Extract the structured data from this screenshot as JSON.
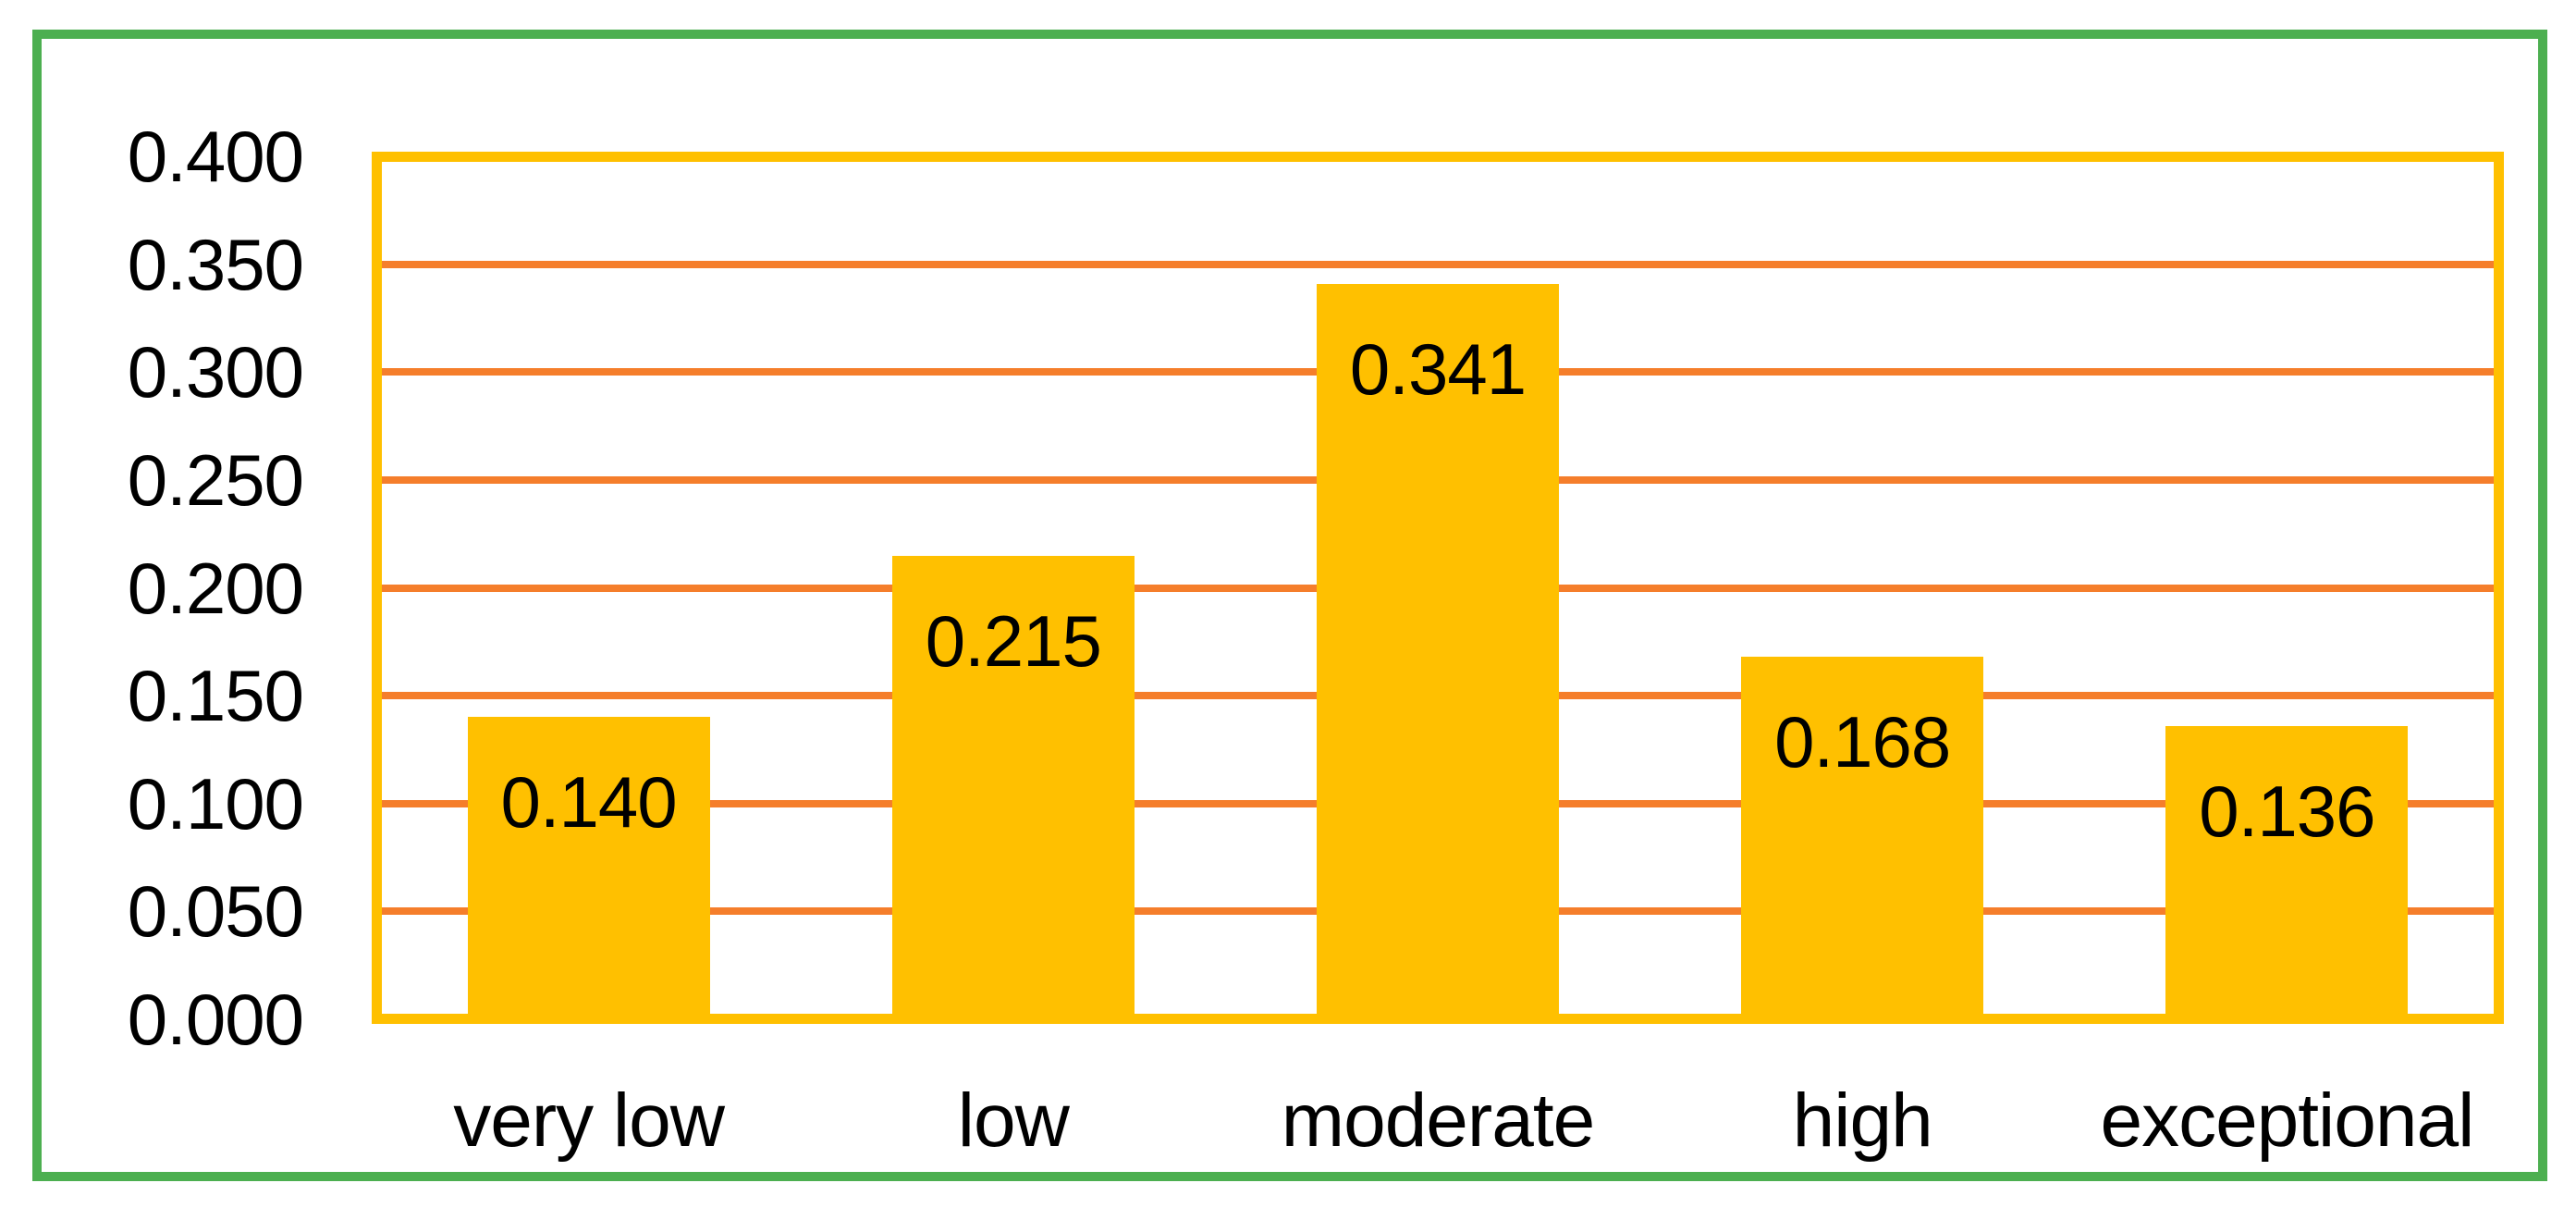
{
  "figure": {
    "border_color": "#4CAF50",
    "background_color": "#FFFFFF"
  },
  "chart_data": {
    "type": "bar",
    "title": "",
    "xlabel": "",
    "ylabel": "",
    "categories": [
      "very low",
      "low",
      "moderate",
      "high",
      "exceptional"
    ],
    "values": [
      0.14,
      0.215,
      0.341,
      0.168,
      0.136
    ],
    "data_labels": [
      "0.140",
      "0.215",
      "0.341",
      "0.168",
      "0.136"
    ],
    "yticks": [
      "0.400",
      "0.350",
      "0.300",
      "0.250",
      "0.200",
      "0.150",
      "0.100",
      "0.050",
      "0.000"
    ],
    "ylim": [
      0.0,
      0.4
    ],
    "ytick_step": 0.05,
    "grid": true,
    "legend": false,
    "data_label_position": "inside-end",
    "bar_color": "#FFC000",
    "plot_border_color": "#FFC000",
    "gridline_color": "#F57E2B",
    "text_color": "#000000"
  }
}
